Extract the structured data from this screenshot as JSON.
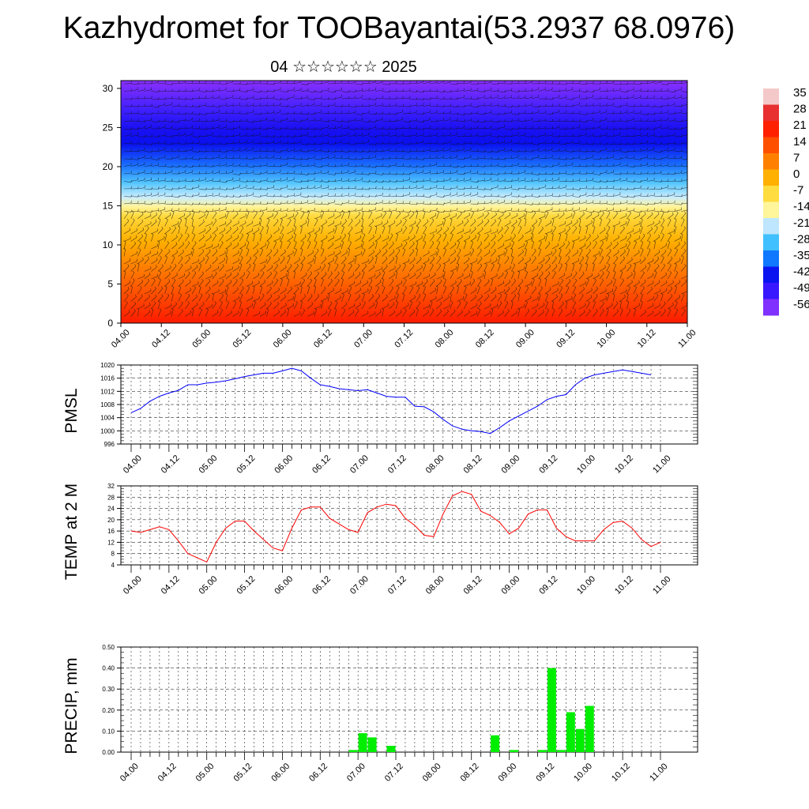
{
  "title": "Kazhydromet for TOOBayantai(53.2937 68.0976)",
  "subtitle": "04 ☆☆☆☆☆☆ 2025",
  "time_labels": [
    "04.00",
    "04.12",
    "05.00",
    "05.12",
    "06.00",
    "06.12",
    "07.00",
    "07.12",
    "08.00",
    "08.12",
    "09.00",
    "09.12",
    "10.00",
    "10.12",
    "11.00"
  ],
  "colorbar": {
    "labels": [
      "35",
      "28",
      "21",
      "14",
      "7",
      "0",
      "-7",
      "-14",
      "-21",
      "-28",
      "-35",
      "-42",
      "-49",
      "-56"
    ],
    "colors": [
      "#f4c8c8",
      "#e83030",
      "#ff2000",
      "#ff5000",
      "#ff8000",
      "#ffb000",
      "#ffdd40",
      "#fff59a",
      "#bfe6ff",
      "#40c0ff",
      "#1078ff",
      "#0a14f0",
      "#3a18ff",
      "#8030ff"
    ]
  },
  "chart_data": [
    {
      "type": "heatmap",
      "title": "Kazhydromet for TOOBayantai(53.2937 68.0976)",
      "subtitle": "04 ☆☆☆☆☆☆ 2025",
      "x": [
        "04.00",
        "04.12",
        "05.00",
        "05.12",
        "06.00",
        "06.12",
        "07.00",
        "07.12",
        "08.00",
        "08.12",
        "09.00",
        "09.12",
        "10.00",
        "10.12",
        "11.00"
      ],
      "y_ticks": [
        0,
        5,
        10,
        15,
        20,
        25,
        30
      ],
      "ylim": [
        0,
        31
      ],
      "color_levels": [
        35,
        28,
        21,
        14,
        7,
        0,
        -7,
        -14,
        -21,
        -28,
        -35,
        -42,
        -49,
        -56
      ],
      "overlay": "wind barbs"
    },
    {
      "type": "line",
      "ylabel": "PMSL",
      "ylim": [
        996,
        1020
      ],
      "y_ticks": [
        996,
        1000,
        1004,
        1008,
        1012,
        1016,
        1020
      ],
      "color": "#0000ff",
      "x_start": 0,
      "x_step_hours": 3,
      "values": [
        1005.5,
        1006.8,
        1009,
        1010.5,
        1011.5,
        1012.3,
        1014,
        1014,
        1014.5,
        1014.8,
        1015.2,
        1015.8,
        1016.5,
        1017,
        1017.5,
        1017.5,
        1018.2,
        1019,
        1018.2,
        1016,
        1014,
        1013.5,
        1012.8,
        1012.5,
        1012.2,
        1012.5,
        1011.5,
        1010.5,
        1010.2,
        1010.2,
        1007.5,
        1007.3,
        1005.8,
        1003.5,
        1001.5,
        1000.5,
        1000,
        999.8,
        999.2,
        1001,
        1003,
        1004.5,
        1006,
        1007.5,
        1009.5,
        1010.5,
        1011,
        1014,
        1016,
        1017,
        1017.5,
        1018,
        1018.5,
        1018,
        1017.5,
        1017
      ]
    },
    {
      "type": "line",
      "ylabel": "TEMP at 2 M",
      "ylim": [
        4,
        32
      ],
      "y_ticks": [
        4,
        8,
        12,
        16,
        20,
        24,
        28,
        32
      ],
      "color": "#ff0000",
      "x_start": 0,
      "x_step_hours": 3,
      "values": [
        16,
        15.5,
        16.5,
        17.5,
        16.5,
        12.5,
        8,
        6.5,
        5,
        12,
        17,
        19.5,
        19.5,
        16,
        13,
        10,
        9,
        17,
        23.5,
        24.5,
        24.5,
        20.5,
        18.5,
        16.5,
        15.5,
        22.5,
        24.5,
        25.5,
        25,
        20.5,
        18,
        14.5,
        14,
        22,
        28.5,
        30,
        29,
        23,
        21.5,
        19,
        15,
        17,
        22,
        23.5,
        23.5,
        17,
        14,
        12.5,
        12.5,
        12.5,
        16.5,
        19,
        19.5,
        17,
        13,
        10.5,
        12
      ]
    },
    {
      "type": "bar",
      "ylabel": "PRECIP, mm",
      "ylim": [
        0,
        0.5
      ],
      "y_ticks": [
        "0.00",
        "0.10",
        "0.20",
        "0.30",
        "0.40",
        "0.50"
      ],
      "color": "#00ee00",
      "x_start": 0,
      "x_step_hours": 3,
      "values": [
        0,
        0,
        0,
        0,
        0,
        0,
        0,
        0,
        0,
        0,
        0,
        0,
        0,
        0,
        0,
        0,
        0,
        0,
        0,
        0,
        0,
        0,
        0,
        0.01,
        0.09,
        0.07,
        0,
        0.03,
        0,
        0,
        0,
        0,
        0,
        0,
        0,
        0,
        0,
        0,
        0.08,
        0,
        0.01,
        0,
        0,
        0.01,
        0.4,
        0.01,
        0.19,
        0.11,
        0.22,
        0,
        0,
        0,
        0,
        0,
        0,
        0
      ]
    }
  ]
}
